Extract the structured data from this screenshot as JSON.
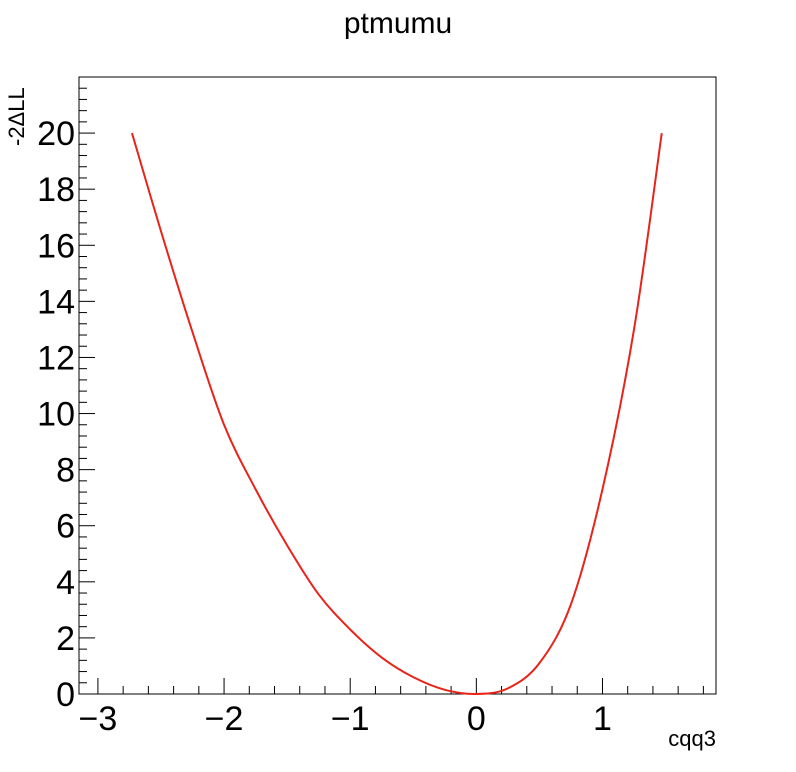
{
  "chart_data": {
    "type": "line",
    "title": "ptmumu",
    "xlabel": "cqq3",
    "ylabel": "-2ΔLL",
    "xlim": [
      -3.15,
      1.9
    ],
    "ylim": [
      0,
      22
    ],
    "x_ticks": [
      -3,
      -2,
      -1,
      0,
      1
    ],
    "x_tick_labels": [
      "−3",
      "−2",
      "−1",
      "0",
      "1"
    ],
    "y_ticks": [
      0,
      2,
      4,
      6,
      8,
      10,
      12,
      14,
      16,
      18,
      20
    ],
    "y_tick_labels": [
      "0",
      "2",
      "4",
      "6",
      "8",
      "10",
      "12",
      "14",
      "16",
      "18",
      "20"
    ],
    "grid": false,
    "series": [
      {
        "color": "#e8231a",
        "x": [
          -2.73,
          -2.5,
          -2.25,
          -2.0,
          -1.75,
          -1.5,
          -1.25,
          -1.0,
          -0.75,
          -0.5,
          -0.25,
          0.0,
          0.25,
          0.5,
          0.75,
          1.0,
          1.25,
          1.47
        ],
        "y": [
          20.0,
          16.5,
          12.9,
          9.6,
          7.3,
          5.3,
          3.55,
          2.3,
          1.3,
          0.6,
          0.15,
          0.0,
          0.2,
          1.1,
          3.2,
          7.3,
          13.0,
          20.0
        ]
      }
    ]
  }
}
